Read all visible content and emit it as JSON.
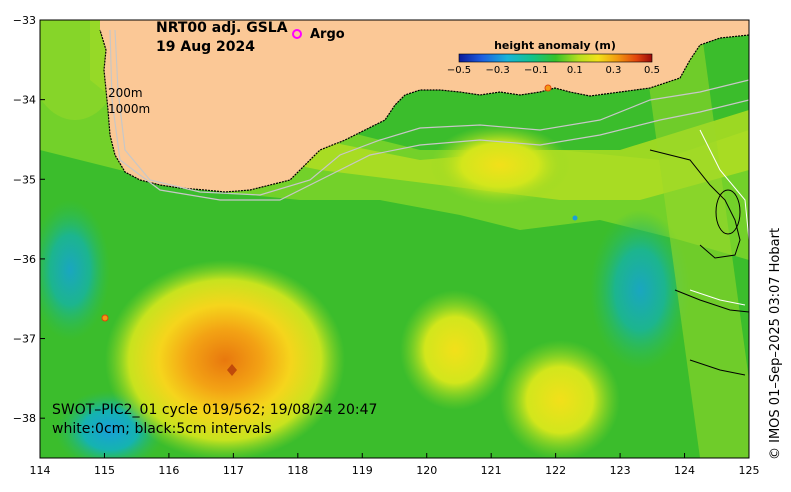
{
  "title": {
    "line1": "NRT00 adj. GSLA",
    "line2": "19 Aug 2024"
  },
  "legend": {
    "argo_label": "Argo"
  },
  "depth_labels": {
    "shallow": "200m",
    "deep": "1000m"
  },
  "colorbar": {
    "title": "height anomaly (m)",
    "ticks": [
      "−0.5",
      "−0.3",
      "−0.1",
      "0.1",
      "0.3",
      "0.5"
    ],
    "range": [
      -0.5,
      0.5
    ]
  },
  "caption": {
    "line1": "SWOT–PIC2_01 cycle 019/562; 19/08/24 20:47",
    "line2": "white:0cm; black:5cm intervals"
  },
  "credit": "© IMOS 01–Sep–2025 03:07 Hobart",
  "axes": {
    "x_ticks": [
      "114",
      "115",
      "116",
      "117",
      "118",
      "119",
      "120",
      "121",
      "122",
      "123",
      "124",
      "125"
    ],
    "y_ticks": [
      "−33",
      "−34",
      "−35",
      "−36",
      "−37",
      "−38"
    ],
    "lon_range": [
      114,
      125
    ],
    "lat_range": [
      -38.5,
      -33
    ]
  },
  "colors": {
    "land": "#fbc896",
    "background_anomaly": "#3fbf2a",
    "argo_marker": "#ff00ff"
  }
}
